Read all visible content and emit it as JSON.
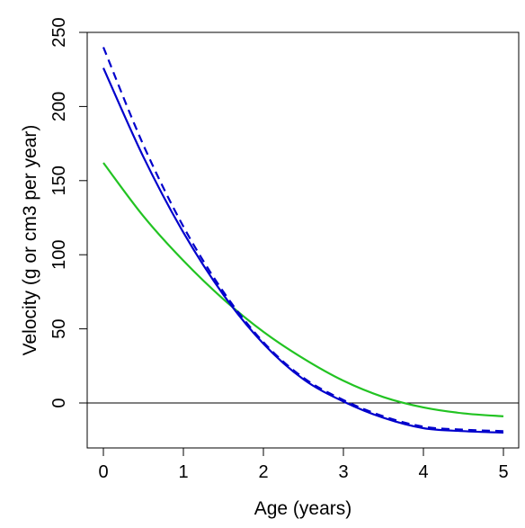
{
  "chart_data": {
    "type": "line",
    "title": "",
    "xlabel": "Age (years)",
    "ylabel": "Velocity (g or cm3 per year)",
    "xlim": [
      0,
      5
    ],
    "ylim": [
      -30,
      250
    ],
    "x_ticks": [
      0,
      1,
      2,
      3,
      4,
      5
    ],
    "y_ticks": [
      0,
      50,
      100,
      150,
      200,
      250
    ],
    "x_tick_labels": [
      "0",
      "1",
      "2",
      "3",
      "4",
      "5"
    ],
    "y_tick_labels": [
      "0",
      "50",
      "100",
      "150",
      "200",
      "250"
    ],
    "grid": false,
    "reference_line": {
      "y": 0,
      "color": "#000000"
    },
    "series": [
      {
        "color": "#22c322",
        "style": "solid",
        "x": [
          0,
          0.5,
          1,
          1.5,
          2,
          2.5,
          3,
          3.5,
          4,
          4.5,
          5
        ],
        "y": [
          162,
          126,
          96,
          70,
          48,
          30,
          15,
          4,
          -3,
          -7,
          -9
        ]
      },
      {
        "color": "#0000cc",
        "style": "solid",
        "x": [
          0,
          0.5,
          1,
          1.5,
          2,
          2.5,
          3,
          3.5,
          4,
          4.5,
          5
        ],
        "y": [
          226,
          166,
          115,
          73,
          40,
          16,
          1,
          -10,
          -17,
          -19,
          -20
        ]
      },
      {
        "color": "#0000cc",
        "style": "dashed",
        "x": [
          0,
          0.5,
          1,
          1.5,
          2,
          2.5,
          3,
          3.5,
          4,
          4.5,
          5
        ],
        "y": [
          240,
          174,
          119,
          75,
          41,
          17,
          2,
          -9,
          -16,
          -18,
          -19
        ]
      }
    ]
  }
}
